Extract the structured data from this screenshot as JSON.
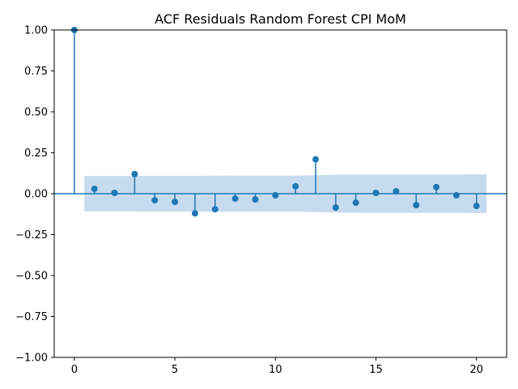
{
  "chart_data": {
    "type": "stem",
    "title": "ACF Residuals Random Forest CPI MoM",
    "xlabel": "",
    "ylabel": "",
    "xlim": [
      -1,
      21.5
    ],
    "ylim": [
      -1.0,
      1.0
    ],
    "xticks": [
      0,
      5,
      10,
      15,
      20
    ],
    "xtick_labels": [
      "0",
      "5",
      "10",
      "15",
      "20"
    ],
    "yticks": [
      -1.0,
      -0.75,
      -0.5,
      -0.25,
      0.0,
      0.25,
      0.5,
      0.75,
      1.0
    ],
    "ytick_labels": [
      "−1.00",
      "−0.75",
      "−0.50",
      "−0.25",
      "0.00",
      "0.25",
      "0.50",
      "0.75",
      "1.00"
    ],
    "lags": [
      0,
      1,
      2,
      3,
      4,
      5,
      6,
      7,
      8,
      9,
      10,
      11,
      12,
      13,
      14,
      15,
      16,
      17,
      18,
      19,
      20
    ],
    "values": [
      1.0,
      0.03,
      0.005,
      0.12,
      -0.04,
      -0.05,
      -0.12,
      -0.095,
      -0.03,
      -0.035,
      -0.01,
      0.045,
      0.21,
      -0.085,
      -0.055,
      0.005,
      0.015,
      -0.07,
      0.04,
      -0.01,
      -0.075
    ],
    "confidence_band": {
      "x": [
        0.5,
        1,
        2,
        3,
        4,
        5,
        6,
        7,
        8,
        9,
        10,
        11,
        12,
        13,
        14,
        15,
        16,
        17,
        18,
        19,
        20,
        20.5
      ],
      "upper": [
        0.108,
        0.108,
        0.108,
        0.108,
        0.109,
        0.109,
        0.109,
        0.11,
        0.111,
        0.111,
        0.111,
        0.111,
        0.112,
        0.116,
        0.117,
        0.117,
        0.117,
        0.117,
        0.117,
        0.117,
        0.118,
        0.118
      ],
      "lower": [
        -0.108,
        -0.108,
        -0.108,
        -0.108,
        -0.109,
        -0.109,
        -0.109,
        -0.11,
        -0.111,
        -0.111,
        -0.111,
        -0.111,
        -0.112,
        -0.116,
        -0.117,
        -0.117,
        -0.117,
        -0.117,
        -0.117,
        -0.117,
        -0.118,
        -0.118
      ]
    },
    "grid": false,
    "legend": "none",
    "colors": {
      "stem": "#1f77b4",
      "band": "#c6dbef",
      "axis": "#000000"
    }
  }
}
